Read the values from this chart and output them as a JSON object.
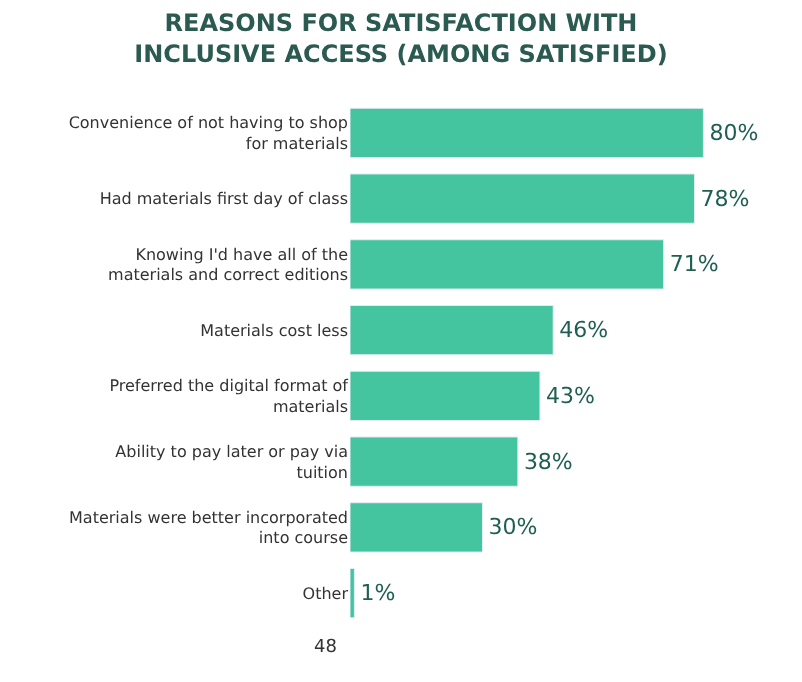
{
  "chart_data": {
    "type": "bar",
    "orientation": "horizontal",
    "title": "REASONS FOR SATISFACTION WITH INCLUSIVE ACCESS (AMONG SATISFIED)",
    "categories": [
      "Convenience of not having to shop for materials",
      "Had materials first day of class",
      "Knowing I'd have all of the materials and correct editions",
      "Materials cost less",
      "Preferred the digital format of materials",
      "Ability to pay later or pay via tuition",
      "Materials were better incorporated into course",
      "Other"
    ],
    "values": [
      80,
      78,
      71,
      46,
      43,
      38,
      30,
      1
    ],
    "color": "#45c4a0",
    "value_labels": [
      "80%",
      "78%",
      "71%",
      "46%",
      "43%",
      "38%",
      "30%",
      "1%"
    ],
    "annotations": [
      "48"
    ]
  }
}
